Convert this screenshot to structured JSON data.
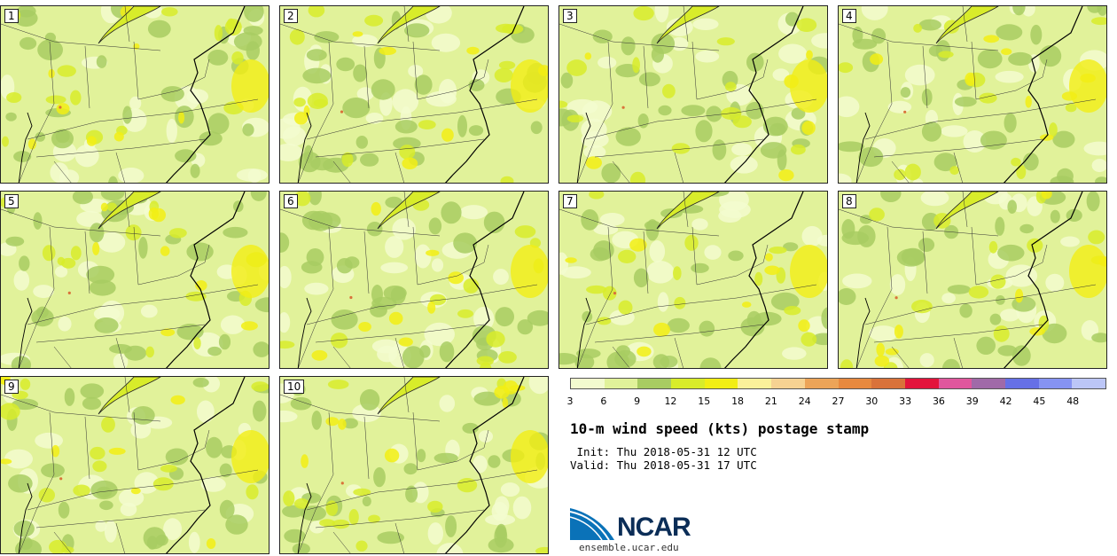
{
  "panels": [
    {
      "label": "1"
    },
    {
      "label": "2"
    },
    {
      "label": "3"
    },
    {
      "label": "4"
    },
    {
      "label": "5"
    },
    {
      "label": "6"
    },
    {
      "label": "7"
    },
    {
      "label": "8"
    },
    {
      "label": "9"
    },
    {
      "label": "10"
    }
  ],
  "legend": {
    "ticks": [
      "3",
      "6",
      "9",
      "12",
      "15",
      "18",
      "21",
      "24",
      "27",
      "30",
      "33",
      "36",
      "39",
      "42",
      "45",
      "48"
    ],
    "colors": [
      "#f3fbcf",
      "#e1f29a",
      "#a8cc62",
      "#d8ec2a",
      "#f2ee14",
      "#fbf19a",
      "#f6d292",
      "#eca458",
      "#e7893f",
      "#d9723a",
      "#e3143c",
      "#e0579d",
      "#a06aa8",
      "#6670e6",
      "#8693f2",
      "#bcc6f7"
    ]
  },
  "title": "10-m wind speed (kts) postage stamp",
  "init_line": " Init: Thu 2018-05-31 12 UTC",
  "valid_line": "Valid: Thu 2018-05-31 17 UTC",
  "logo": {
    "text": "NCAR",
    "site": "ensemble.ucar.edu",
    "brand_blue": "#0a72b8"
  }
}
